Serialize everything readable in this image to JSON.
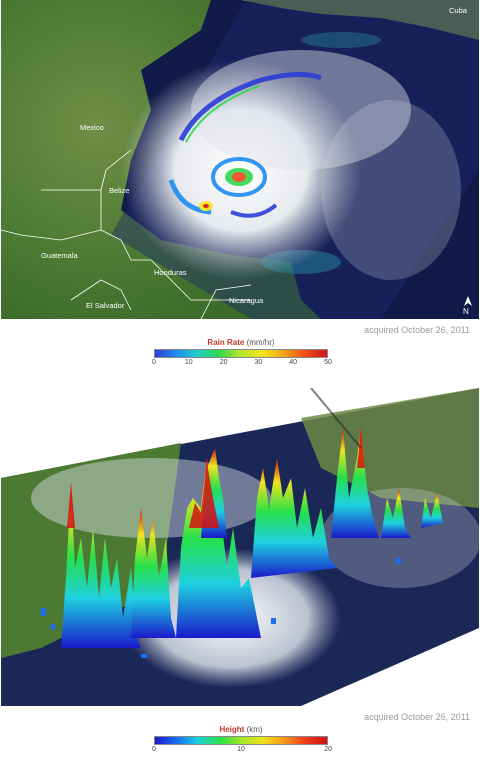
{
  "top_map": {
    "labels": {
      "cuba": "Cuba",
      "mexico": "Mexico",
      "belize": "Belize",
      "guatemala": "Guatemala",
      "honduras": "Honduras",
      "el_salvador": "El Salvador",
      "nicaragua": "Nicaragua"
    },
    "north_arrow": "N",
    "acquired": "acquired October 26, 2011"
  },
  "rain_legend": {
    "title": "Rain Rate",
    "unit": "(mm/hr)",
    "ticks": [
      "0",
      "10",
      "20",
      "30",
      "40",
      "50"
    ],
    "colors": [
      "#2b3fd6",
      "#20d0c8",
      "#2fd84a",
      "#f3e51c",
      "#ee4a1a",
      "#d3141a"
    ]
  },
  "bottom_map": {
    "acquired": "acquired October 26, 2011"
  },
  "height_legend": {
    "title": "Height",
    "unit": "(km)",
    "ticks": [
      "0",
      "10",
      "20"
    ],
    "colors": [
      "#1a1acb",
      "#1ed0e0",
      "#26e04a",
      "#f0e41c",
      "#d31010"
    ]
  }
}
